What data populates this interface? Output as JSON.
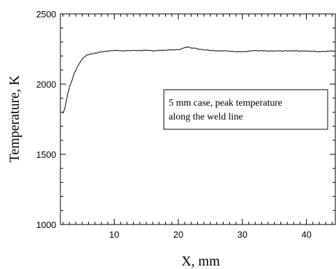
{
  "chart_data": {
    "type": "line",
    "xlabel": "X, mm",
    "ylabel": "Temperature, K",
    "xlim": [
      1.6,
      44.5
    ],
    "ylim": [
      1000,
      2500
    ],
    "x_ticks": [
      10,
      20,
      30,
      40
    ],
    "y_ticks": [
      1000,
      1500,
      2000,
      2500
    ],
    "x_minor_step": 1,
    "y_minor_step": 100,
    "grid": false,
    "annotation": {
      "line1": "5 mm case, peak temperature",
      "line2": "along the weld line"
    },
    "series": [
      {
        "color": "#000000",
        "points": [
          [
            2.0,
            1790
          ],
          [
            2.3,
            1830
          ],
          [
            2.6,
            1900
          ],
          [
            2.9,
            1960
          ],
          [
            3.2,
            2000
          ],
          [
            3.5,
            2040
          ],
          [
            3.8,
            2080
          ],
          [
            4.2,
            2120
          ],
          [
            4.6,
            2150
          ],
          [
            5.0,
            2180
          ],
          [
            5.5,
            2200
          ],
          [
            6.0,
            2210
          ],
          [
            7.0,
            2220
          ],
          [
            8.0,
            2230
          ],
          [
            9.0,
            2235
          ],
          [
            10.0,
            2240
          ],
          [
            12.0,
            2238
          ],
          [
            14.0,
            2240
          ],
          [
            16.0,
            2238
          ],
          [
            18.0,
            2242
          ],
          [
            20.0,
            2245
          ],
          [
            21.5,
            2265
          ],
          [
            22.5,
            2255
          ],
          [
            24.0,
            2245
          ],
          [
            26.0,
            2238
          ],
          [
            28.0,
            2235
          ],
          [
            30.0,
            2230
          ],
          [
            32.0,
            2238
          ],
          [
            34.0,
            2235
          ],
          [
            36.0,
            2236
          ],
          [
            38.0,
            2238
          ],
          [
            40.0,
            2235
          ],
          [
            42.0,
            2232
          ],
          [
            44.0,
            2236
          ],
          [
            44.5,
            2236
          ]
        ]
      }
    ]
  }
}
